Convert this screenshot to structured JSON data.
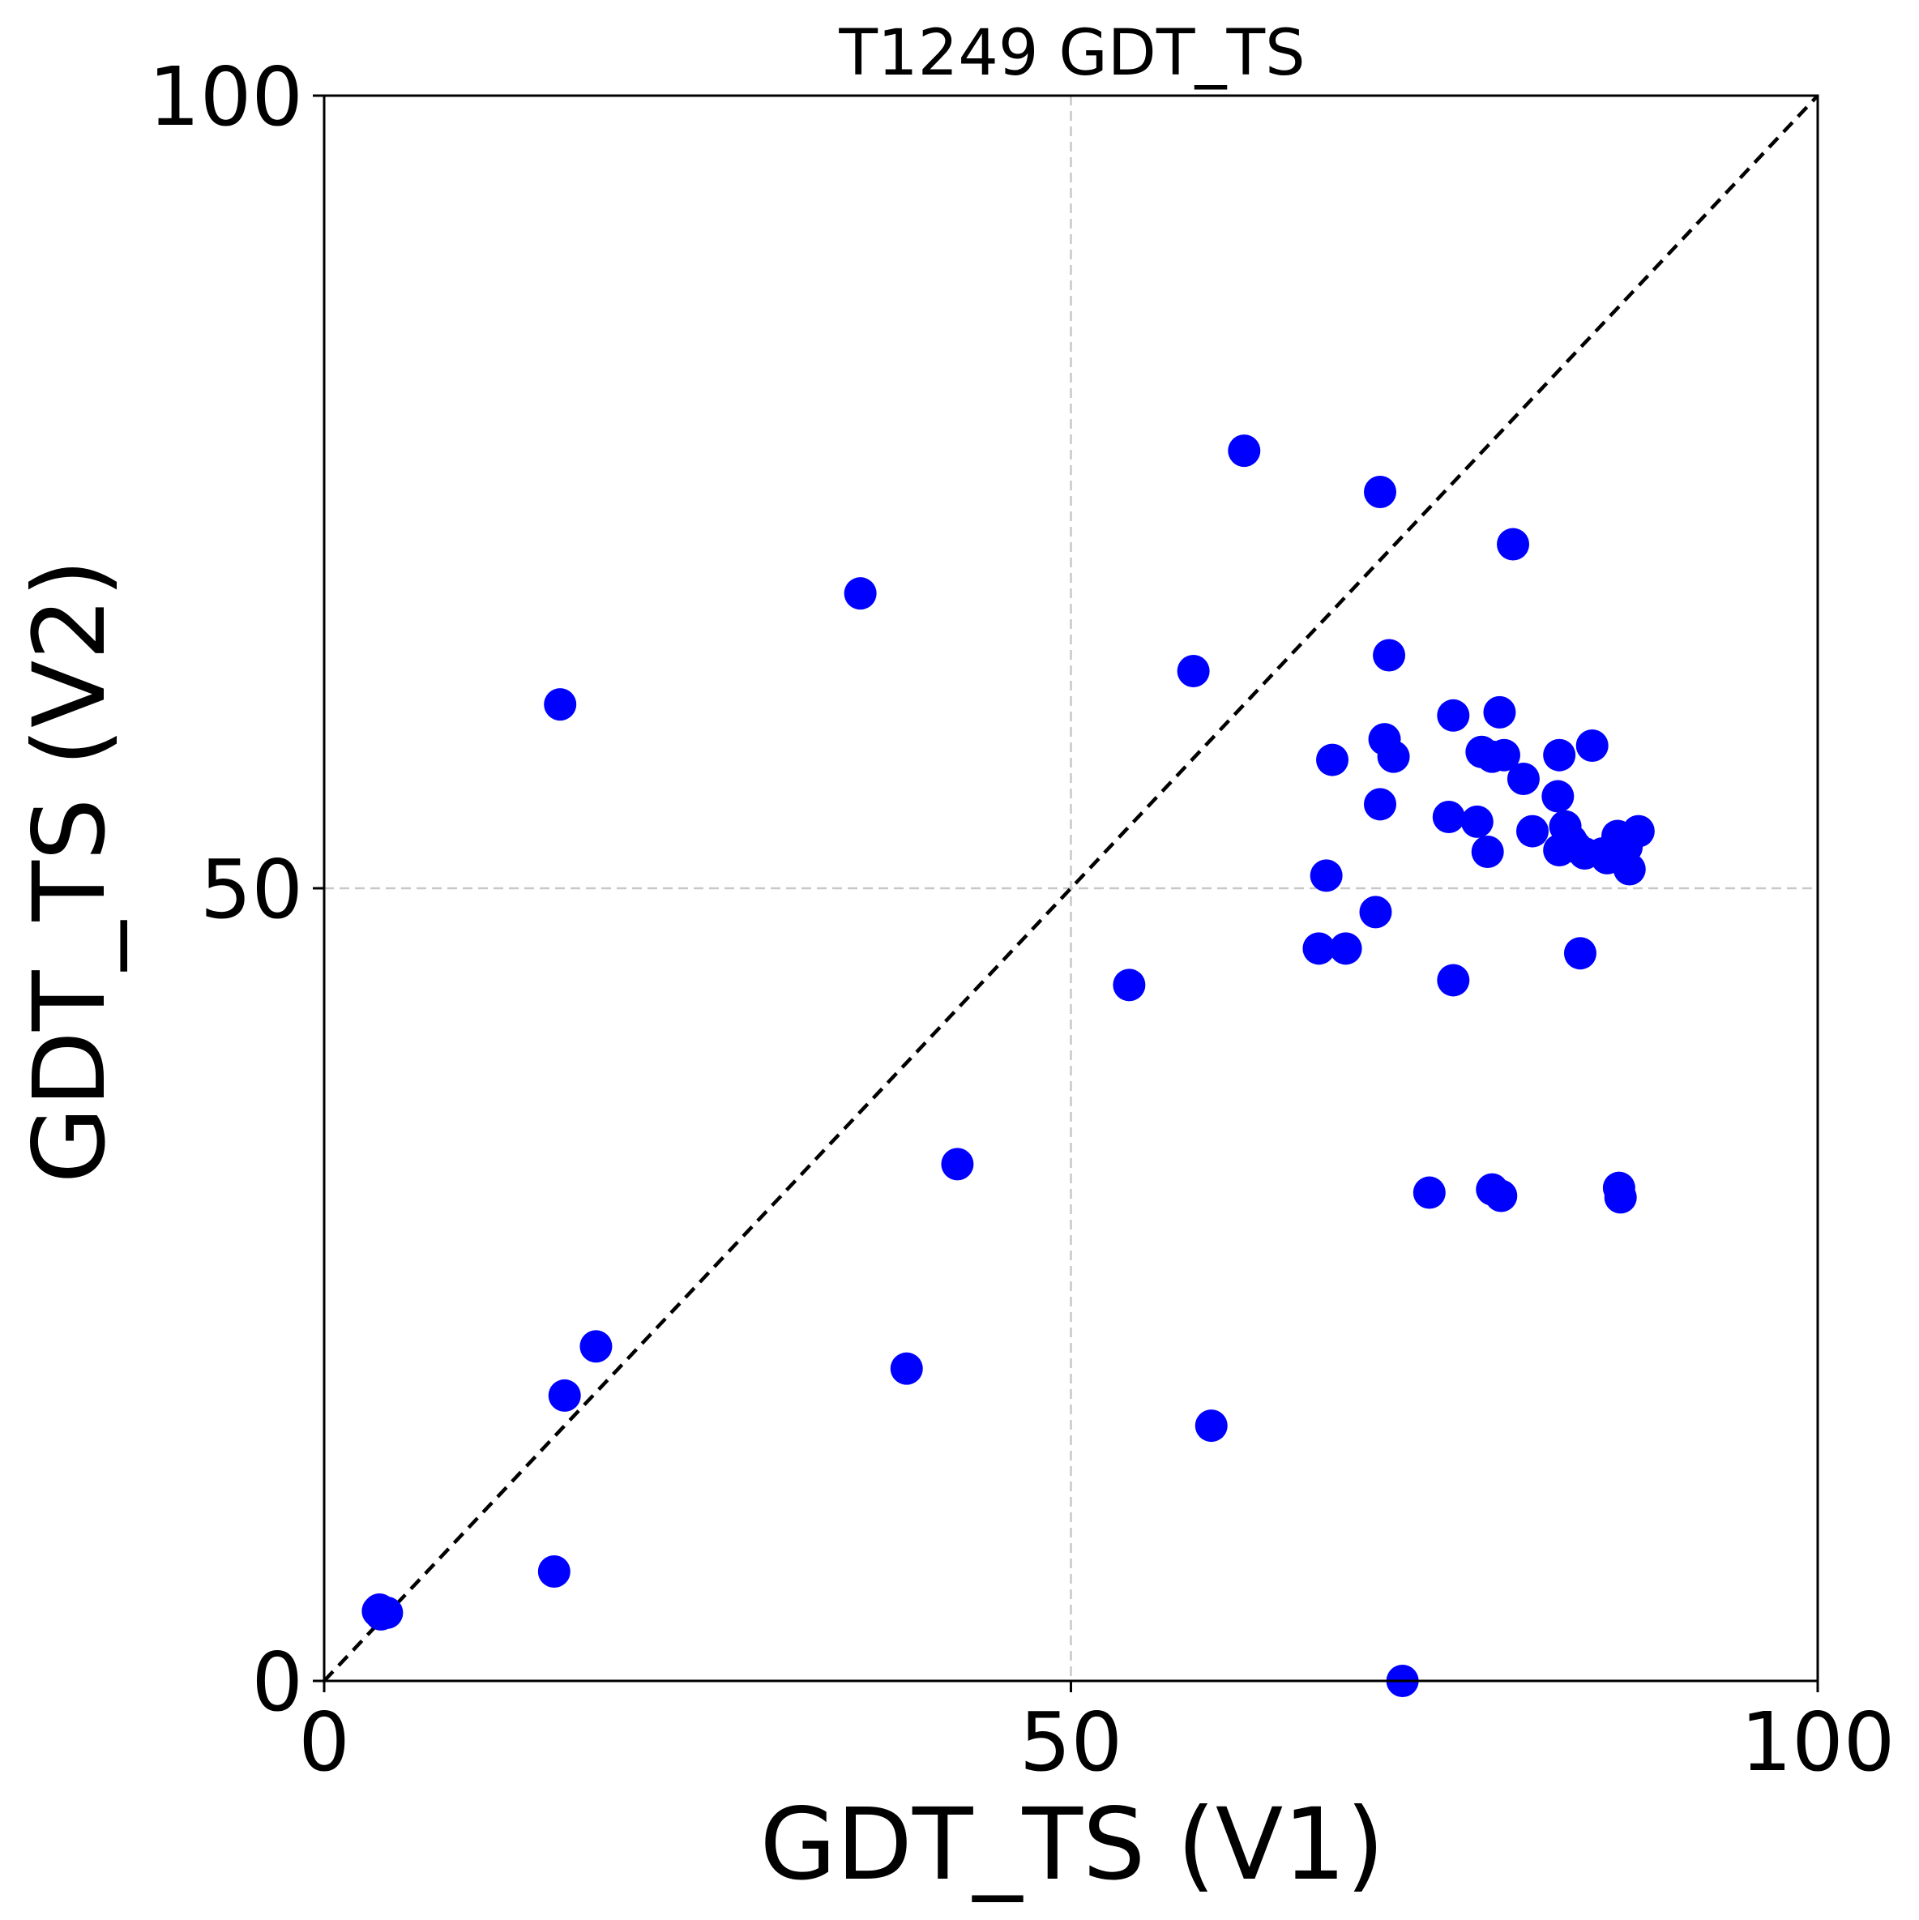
{
  "chart_data": {
    "type": "scatter",
    "title": "T1249 GDT_TS",
    "xlabel": "GDT_TS (V1)",
    "ylabel": "GDT_TS (V2)",
    "xlim": [
      0,
      100
    ],
    "ylim": [
      0,
      100
    ],
    "xticks": [
      "0",
      "50",
      "100"
    ],
    "yticks": [
      "0",
      "50",
      "100"
    ],
    "grid": true,
    "reference_line": "y = x (dashed black)",
    "point_color": "#0000ff",
    "points": [
      [
        3.6,
        4.4
      ],
      [
        3.7,
        4.5
      ],
      [
        3.8,
        4.2
      ],
      [
        4.2,
        4.3
      ],
      [
        15.4,
        6.9
      ],
      [
        15.8,
        61.6
      ],
      [
        16.1,
        18.0
      ],
      [
        18.2,
        21.1
      ],
      [
        35.9,
        68.6
      ],
      [
        39.0,
        19.7
      ],
      [
        42.4,
        32.6
      ],
      [
        53.9,
        43.9
      ],
      [
        58.2,
        63.7
      ],
      [
        59.4,
        16.1
      ],
      [
        61.6,
        77.6
      ],
      [
        66.6,
        46.2
      ],
      [
        67.1,
        50.8
      ],
      [
        67.5,
        58.1
      ],
      [
        68.4,
        46.2
      ],
      [
        70.4,
        48.5
      ],
      [
        70.7,
        55.3
      ],
      [
        70.7,
        75.0
      ],
      [
        71.0,
        59.4
      ],
      [
        71.3,
        64.7
      ],
      [
        71.6,
        58.3
      ],
      [
        72.2,
        0.0
      ],
      [
        74.0,
        30.8
      ],
      [
        75.3,
        54.5
      ],
      [
        75.6,
        44.2
      ],
      [
        75.6,
        60.9
      ],
      [
        77.2,
        54.2
      ],
      [
        77.5,
        58.6
      ],
      [
        77.9,
        52.3
      ],
      [
        78.2,
        58.3
      ],
      [
        78.2,
        31.0
      ],
      [
        78.7,
        61.1
      ],
      [
        78.8,
        30.6
      ],
      [
        79.0,
        58.4
      ],
      [
        79.6,
        71.7
      ],
      [
        80.3,
        56.9
      ],
      [
        80.9,
        53.6
      ],
      [
        82.6,
        55.8
      ],
      [
        82.7,
        58.4
      ],
      [
        82.7,
        52.4
      ],
      [
        83.1,
        53.9
      ],
      [
        83.5,
        53.0
      ],
      [
        83.8,
        52.6
      ],
      [
        84.1,
        45.9
      ],
      [
        84.4,
        52.2
      ],
      [
        84.9,
        59.0
      ],
      [
        85.6,
        52.2
      ],
      [
        85.9,
        51.9
      ],
      [
        86.6,
        53.3
      ],
      [
        86.7,
        31.1
      ],
      [
        86.8,
        30.5
      ],
      [
        87.2,
        52.6
      ],
      [
        87.4,
        51.2
      ],
      [
        88.0,
        53.6
      ]
    ]
  }
}
